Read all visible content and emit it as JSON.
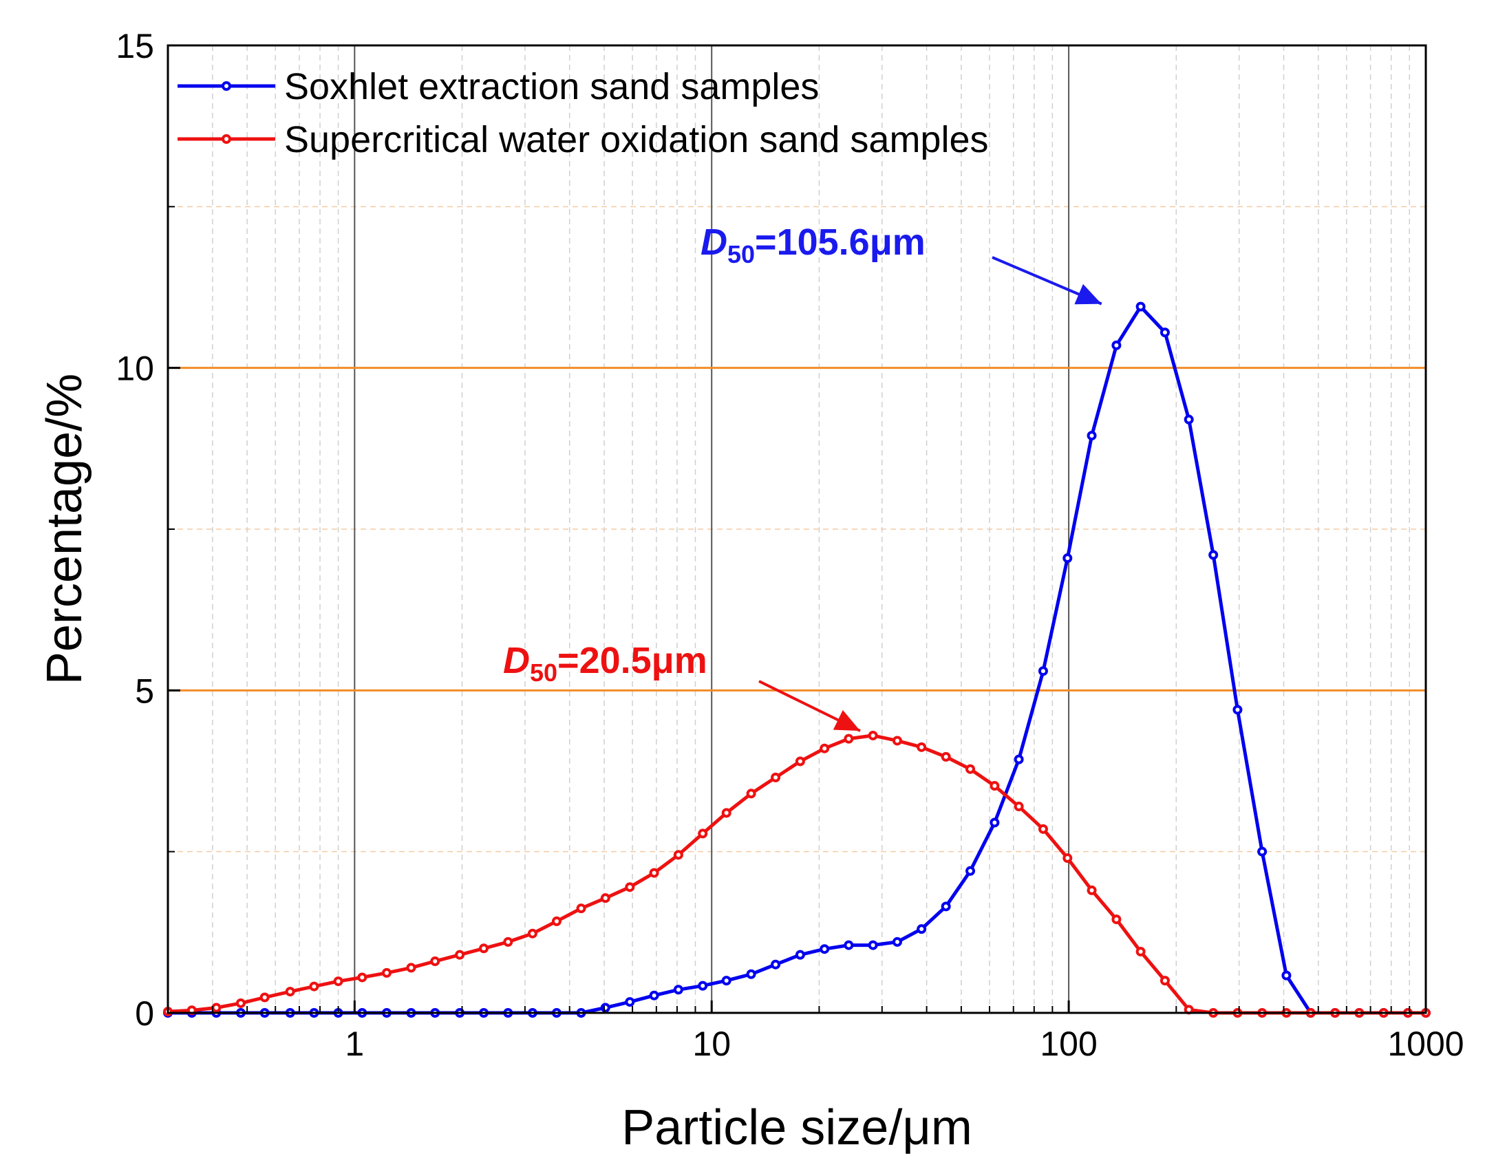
{
  "chart_data": {
    "type": "line",
    "xscale": "log",
    "xlabel": "Particle size/μm",
    "ylabel": "Percentage/%",
    "xlim": [
      0.3,
      1000
    ],
    "ylim": [
      0,
      15
    ],
    "xticks": [
      1,
      10,
      100,
      1000
    ],
    "xtick_labels": [
      "1",
      "10",
      "100",
      "1000"
    ],
    "yticks": [
      0,
      5,
      10,
      15
    ],
    "ytick_labels": [
      "0",
      "5",
      "10",
      "15"
    ],
    "highlight_lines_y": [
      5,
      10
    ],
    "minor_gridlines_y": [
      2.5,
      7.5,
      12.5
    ],
    "legend_position": "top-left",
    "series": [
      {
        "name": "Soxhlet extraction sand samples",
        "color": "#0000ee",
        "x": [
          0.3,
          0.35,
          0.41,
          0.48,
          0.56,
          0.66,
          0.77,
          0.9,
          1.05,
          1.23,
          1.44,
          1.68,
          1.97,
          2.3,
          2.69,
          3.15,
          3.68,
          4.31,
          5.04,
          5.9,
          6.9,
          8.07,
          9.44,
          11.0,
          12.9,
          15.1,
          17.7,
          20.7,
          24.2,
          28.3,
          33.1,
          38.7,
          45.3,
          53.0,
          62.0,
          72.5,
          84.8,
          99.2,
          116,
          136,
          159,
          186,
          217,
          254,
          297,
          348,
          407,
          476,
          557,
          651,
          762,
          891,
          1000
        ],
        "values": [
          0,
          0,
          0,
          0,
          0,
          0,
          0,
          0,
          0,
          0,
          0,
          0,
          0,
          0,
          0,
          0,
          0,
          0,
          0.08,
          0.17,
          0.27,
          0.36,
          0.42,
          0.5,
          0.6,
          0.75,
          0.9,
          0.99,
          1.05,
          1.05,
          1.1,
          1.3,
          1.65,
          2.2,
          2.95,
          3.93,
          5.3,
          7.05,
          8.95,
          10.35,
          10.95,
          10.55,
          9.2,
          7.1,
          4.7,
          2.5,
          0.58,
          0,
          0,
          0,
          0,
          0,
          0
        ]
      },
      {
        "name": "Supercritical water oxidation sand samples",
        "color": "#ee1111",
        "x": [
          0.3,
          0.35,
          0.41,
          0.48,
          0.56,
          0.66,
          0.77,
          0.9,
          1.05,
          1.23,
          1.44,
          1.68,
          1.97,
          2.3,
          2.69,
          3.15,
          3.68,
          4.31,
          5.04,
          5.9,
          6.9,
          8.07,
          9.44,
          11.0,
          12.9,
          15.1,
          17.7,
          20.7,
          24.2,
          28.3,
          33.1,
          38.7,
          45.3,
          53.0,
          62.0,
          72.5,
          84.8,
          99.2,
          116,
          136,
          159,
          186,
          217,
          254,
          297,
          348,
          407,
          476,
          557,
          651,
          762,
          891,
          1000
        ],
        "values": [
          0.02,
          0.04,
          0.08,
          0.15,
          0.24,
          0.33,
          0.41,
          0.49,
          0.55,
          0.62,
          0.7,
          0.8,
          0.9,
          1.0,
          1.1,
          1.23,
          1.42,
          1.62,
          1.78,
          1.95,
          2.17,
          2.45,
          2.78,
          3.1,
          3.4,
          3.65,
          3.9,
          4.1,
          4.25,
          4.3,
          4.22,
          4.12,
          3.97,
          3.78,
          3.52,
          3.2,
          2.85,
          2.4,
          1.9,
          1.45,
          0.95,
          0.5,
          0.05,
          0,
          0,
          0,
          0,
          0,
          0,
          0,
          0,
          0,
          0
        ]
      }
    ],
    "annotations": [
      {
        "italic": "D",
        "subscript": "50",
        "rest": "=105.6μm",
        "color": "#1a1aee",
        "target_x": 128,
        "target_y": 10.95
      },
      {
        "italic": "D",
        "subscript": "50",
        "rest": "=20.5μm",
        "color": "#ee1111",
        "target_x": 27,
        "target_y": 4.33
      }
    ]
  }
}
